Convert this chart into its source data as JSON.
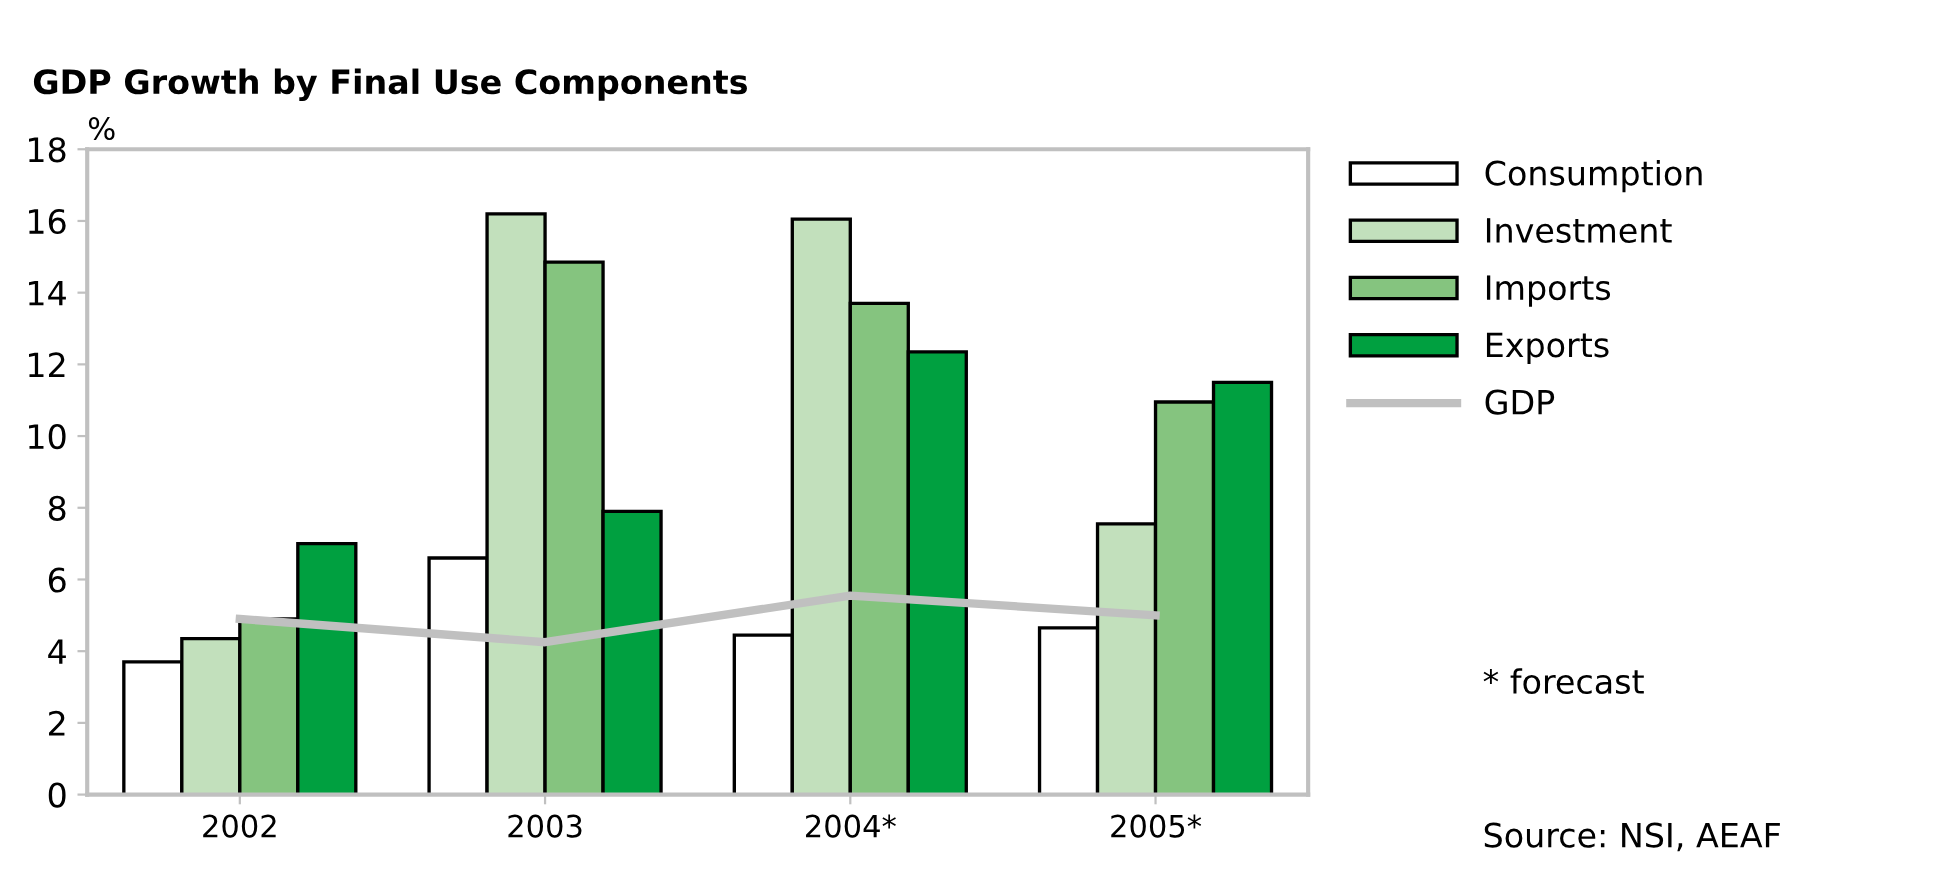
{
  "chart_data": {
    "type": "bar",
    "title": "GDP Growth by Final Use Components",
    "ylabel": "%",
    "categories": [
      "2002",
      "2003",
      "2004*",
      "2005*"
    ],
    "series": [
      {
        "name": "Consumption",
        "color": "#ffffff",
        "values": [
          3.7,
          6.6,
          4.45,
          4.65
        ]
      },
      {
        "name": "Investment",
        "color": "#c2e0bc",
        "values": [
          4.35,
          16.2,
          16.05,
          7.55
        ]
      },
      {
        "name": "Imports",
        "color": "#85c47f",
        "values": [
          4.9,
          14.85,
          13.7,
          10.95
        ]
      },
      {
        "name": "Exports",
        "color": "#00a040",
        "values": [
          7.0,
          7.9,
          12.35,
          11.5
        ]
      },
      {
        "name": "GDP",
        "type": "line",
        "color": "#c0c0c0",
        "values": [
          4.9,
          4.25,
          5.55,
          5.0
        ]
      }
    ],
    "ylim": [
      0,
      18
    ],
    "yticks": [
      0,
      2,
      4,
      6,
      8,
      10,
      12,
      14,
      16,
      18
    ],
    "grid": false,
    "legend": "right",
    "annotations": [
      "* forecast",
      "Source: NSI, AEAF"
    ]
  }
}
